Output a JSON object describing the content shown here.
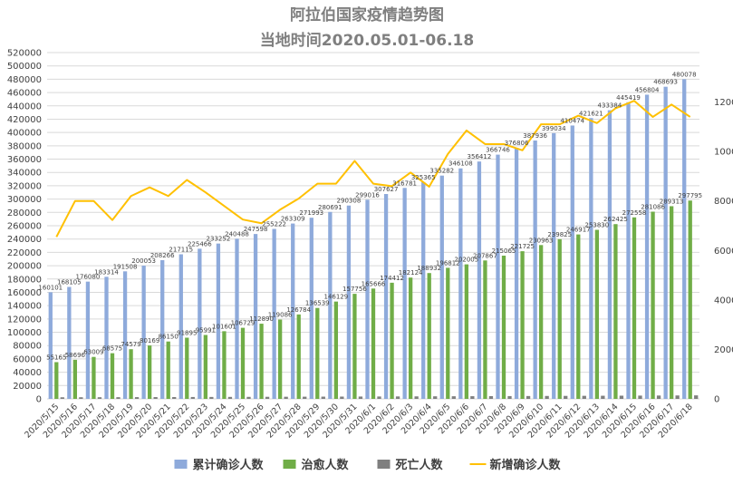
{
  "chart_data": {
    "type": "bar",
    "title": "阿拉伯国家疫情趋势图",
    "subtitle": "当地时间2020.05.01-06.18",
    "categories": [
      "2020/5/15",
      "2020/5/16",
      "2020/5/17",
      "2020/5/18",
      "2020/5/19",
      "2020/5/20",
      "2020/5/21",
      "2020/5/22",
      "2020/5/23",
      "2020/5/24",
      "2020/5/25",
      "2020/5/26",
      "2020/5/27",
      "2020/5/28",
      "2020/5/29",
      "2020/5/30",
      "2020/5/31",
      "2020/6/1",
      "2020/6/2",
      "2020/6/3",
      "2020/6/4",
      "2020/6/5",
      "2020/6/6",
      "2020/6/7",
      "2020/6/8",
      "2020/6/9",
      "2020/6/10",
      "2020/6/11",
      "2020/6/12",
      "2020/6/13",
      "2020/6/14",
      "2020/6/15",
      "2020/6/16",
      "2020/6/17",
      "2020/6/18"
    ],
    "series": [
      {
        "name": "累计确诊人数",
        "type": "bar",
        "axis": "left",
        "color": "#8eaadb",
        "values": [
          160101,
          168105,
          176080,
          183314,
          191508,
          200053,
          208266,
          217115,
          225466,
          233252,
          240488,
          247598,
          255222,
          263309,
          271993,
          280691,
          290308,
          299016,
          307627,
          316781,
          325365,
          335282,
          346108,
          356412,
          366746,
          376806,
          387936,
          399034,
          410474,
          421621,
          433384,
          445419,
          456804,
          468693,
          480078
        ]
      },
      {
        "name": "治愈人数",
        "type": "bar",
        "axis": "left",
        "color": "#70ad47",
        "values": [
          55165,
          58696,
          63009,
          68575,
          74579,
          80169,
          86150,
          91895,
          95991,
          101601,
          106729,
          112890,
          119086,
          126784,
          136539,
          146129,
          157756,
          165666,
          174412,
          182124,
          188932,
          196812,
          202005,
          207867,
          215065,
          221725,
          230963,
          239825,
          246917,
          253830,
          262425,
          272558,
          281086,
          289313,
          297795
        ]
      },
      {
        "name": "死亡人数",
        "type": "bar",
        "axis": "left",
        "color": "#7f7f7f",
        "values": [
          2400,
          2450,
          2500,
          2560,
          2620,
          2680,
          2750,
          2820,
          2890,
          2960,
          3030,
          3100,
          3180,
          3260,
          3340,
          3420,
          3500,
          3580,
          3660,
          3740,
          3830,
          3920,
          4010,
          4100,
          4190,
          4280,
          4380,
          4480,
          4580,
          4690,
          4800,
          4910,
          5020,
          5140,
          5260
        ]
      },
      {
        "name": "新增确诊人数",
        "type": "line",
        "axis": "right",
        "color": "#ffc000",
        "values": [
          6550,
          8000,
          8000,
          7230,
          8200,
          8550,
          8200,
          8850,
          8350,
          7800,
          7250,
          7100,
          7650,
          8100,
          8700,
          8700,
          9620,
          8700,
          8600,
          9150,
          8580,
          9900,
          10850,
          10300,
          10300,
          10050,
          11100,
          11100,
          11450,
          11150,
          11750,
          12050,
          11400,
          11900,
          11400
        ]
      }
    ],
    "ylim_left": [
      0,
      520000
    ],
    "yticks_left": [
      0,
      20000,
      40000,
      60000,
      80000,
      100000,
      120000,
      140000,
      160000,
      180000,
      200000,
      220000,
      240000,
      260000,
      280000,
      300000,
      320000,
      340000,
      360000,
      380000,
      400000,
      420000,
      440000,
      460000,
      480000,
      500000,
      520000
    ],
    "ylim_right": [
      0,
      14000
    ],
    "yticks_right": [
      0,
      2000,
      4000,
      6000,
      8000,
      10000,
      12000
    ],
    "labeled_series": [
      "累计确诊人数",
      "治愈人数"
    ],
    "grid": true,
    "legend_position": "bottom"
  }
}
